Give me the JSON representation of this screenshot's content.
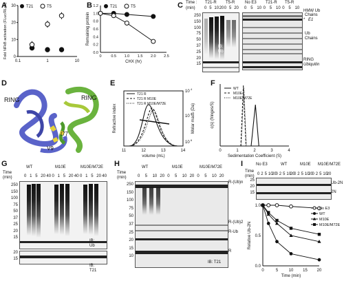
{
  "panels": {
    "A": {
      "label": "A",
      "legend": [
        "T21",
        "T5"
      ],
      "ylabel": "Fold NFkB activation (FLuc/RLuc)",
      "xlabel": "",
      "yticks": [
        "0",
        "10",
        "20",
        "30"
      ],
      "xticks": [
        "0.1",
        "1",
        "10"
      ]
    },
    "B": {
      "label": "B",
      "legend": [
        "T21",
        "T5"
      ],
      "ylabel": "Remaining protein",
      "xlabel": "CHX (hr)",
      "yticks": [
        "0.0",
        "0.2",
        "0.4",
        "0.6",
        "0.8",
        "1.0",
        "1.2"
      ],
      "xticks": [
        "0",
        "0.5",
        "1.0",
        "1.5",
        "2.0",
        "2.5"
      ]
    },
    "C": {
      "label": "C",
      "time_label": "Time :",
      "time_unit": "(min)",
      "groups_left": [
        "T21-R",
        "T5-R"
      ],
      "times_left": [
        "0",
        "5",
        "10",
        "20",
        "0",
        "5",
        "20"
      ],
      "groups_right": [
        "No E3",
        "T21-R",
        "T5-R"
      ],
      "times_right": [
        "0",
        "5",
        "10",
        "0",
        "5",
        "10",
        "0",
        "5",
        "10"
      ],
      "mw": [
        "250",
        "150",
        "100",
        "75",
        "50",
        "37",
        "25",
        "20",
        "15"
      ],
      "ib": "IB:",
      "ib2": "Ub",
      "annot": [
        "HMW Ub",
        "Chains",
        "E1",
        "Ub",
        "Chains",
        "RING",
        "Ubiquitin"
      ],
      "star": "*"
    },
    "D": {
      "label": "D",
      "ring1": "RING",
      "ring2": "RING",
      "res1": "I77",
      "res2": "V9"
    },
    "E": {
      "label": "E",
      "legend": [
        "T21 R",
        "T21 R M10E",
        "T21 R M10E/M72E"
      ],
      "ylabel": "Refractive index",
      "y2label": "Molar mass (Da)",
      "xlabel": "volume (mL)",
      "xticks": [
        "11",
        "12",
        "13",
        "14"
      ],
      "y2ticks": [
        "10",
        "10",
        "10"
      ],
      "y2exp": [
        "4",
        "5",
        "6"
      ]
    },
    "F": {
      "label": "F",
      "legend": [
        "WT",
        "M10E",
        "M10E/M72E"
      ],
      "ylabel": "c(s) (fringes/S)",
      "xlabel": "Sedimentation Coefficient (S)",
      "xticks": [
        "0",
        "1",
        "2",
        "3",
        "4"
      ]
    },
    "G": {
      "label": "G",
      "time": "Time",
      "unit": "(min)",
      "groups": [
        "WT",
        "M10E",
        "M10E/M72E"
      ],
      "times": [
        "0",
        "1",
        "5",
        "20",
        "40",
        "0",
        "1",
        "5",
        "20",
        "40",
        "0",
        "1",
        "5",
        "20",
        "40"
      ],
      "mw": [
        "250",
        "150",
        "100",
        "75",
        "50",
        "37",
        "25",
        "20",
        "15"
      ],
      "mw2": [
        "20",
        "15"
      ],
      "ib": "IB:",
      "ib2": "Ub",
      "ib3": "IB:",
      "ib4": "T21"
    },
    "H": {
      "label": "H",
      "time": "Time",
      "unit": "(min)",
      "groups": [
        "WT",
        "M10E",
        "M10E/M72E"
      ],
      "times": [
        "0",
        "5",
        "10",
        "20",
        "0",
        "5",
        "10",
        "20",
        "0",
        "5",
        "10",
        "20"
      ],
      "mw": [
        "250",
        "150",
        "100",
        "75",
        "50",
        "37",
        "25",
        "20",
        "15",
        "10"
      ],
      "annot": [
        "R-(Ub)n",
        "R-(Ub)2",
        "R-Ub",
        "R",
        "IB: T21"
      ]
    },
    "I": {
      "label": "I",
      "time": "Time",
      "unit": "(min)",
      "groups": [
        "No E3",
        "WT",
        "M10E",
        "M10E/M72E"
      ],
      "times": [
        "0",
        "2",
        "5",
        "10",
        "20",
        "0",
        "2",
        "5",
        "10",
        "20",
        "0",
        "2",
        "5",
        "10",
        "20",
        "0",
        "2",
        "5",
        "10",
        "20"
      ],
      "mw": [
        "25",
        "20",
        "15"
      ],
      "annot": [
        "Ub-2N",
        "2N"
      ],
      "legend": [
        "No E3",
        "WT",
        "M10E",
        "M10E/M72E"
      ],
      "ylabel": "Relative Ub-2N",
      "xlabel": "Time (min)",
      "yticks": [
        "0.0",
        "0.5",
        "1.0"
      ],
      "xticks": [
        "0",
        "5",
        "10",
        "15",
        "20"
      ]
    }
  },
  "chart_data": [
    {
      "type": "scatter",
      "panel": "A",
      "ylabel": "Fold NFkB activation (FLuc/RLuc)",
      "ylim": [
        0,
        30
      ],
      "log_x": true,
      "series": [
        {
          "name": "T21",
          "x": [
            0.3,
            1,
            3
          ],
          "y": [
            5,
            4,
            4
          ]
        },
        {
          "name": "T5",
          "x": [
            0.3,
            1,
            3
          ],
          "y": [
            7,
            19,
            24
          ]
        }
      ]
    },
    {
      "type": "line",
      "panel": "B",
      "xlabel": "CHX (hr)",
      "ylabel": "Remaining protein",
      "ylim": [
        0,
        1.2
      ],
      "xlim": [
        0,
        2.5
      ],
      "series": [
        {
          "name": "T21",
          "x": [
            0,
            0.5,
            1,
            2
          ],
          "y": [
            1.0,
            1.0,
            0.97,
            0.92
          ]
        },
        {
          "name": "T5",
          "x": [
            0,
            0.5,
            1,
            2
          ],
          "y": [
            1.0,
            0.94,
            0.75,
            0.28
          ]
        }
      ]
    },
    {
      "type": "line",
      "panel": "I",
      "xlabel": "Time (min)",
      "ylabel": "Relative Ub-2N",
      "ylim": [
        0,
        1.0
      ],
      "xlim": [
        0,
        20
      ],
      "series": [
        {
          "name": "No E3",
          "x": [
            0,
            2,
            5,
            10,
            20
          ],
          "y": [
            1.0,
            1.0,
            1.0,
            0.98,
            0.95
          ]
        },
        {
          "name": "WT",
          "x": [
            0,
            2,
            5,
            10,
            20
          ],
          "y": [
            1.0,
            0.7,
            0.4,
            0.2,
            0.1
          ]
        },
        {
          "name": "M10E",
          "x": [
            0,
            2,
            5,
            10,
            20
          ],
          "y": [
            1.0,
            0.85,
            0.7,
            0.5,
            0.4
          ]
        },
        {
          "name": "M10E/M72E",
          "x": [
            0,
            2,
            5,
            10,
            20
          ],
          "y": [
            1.0,
            0.88,
            0.75,
            0.62,
            0.52
          ]
        }
      ]
    }
  ]
}
